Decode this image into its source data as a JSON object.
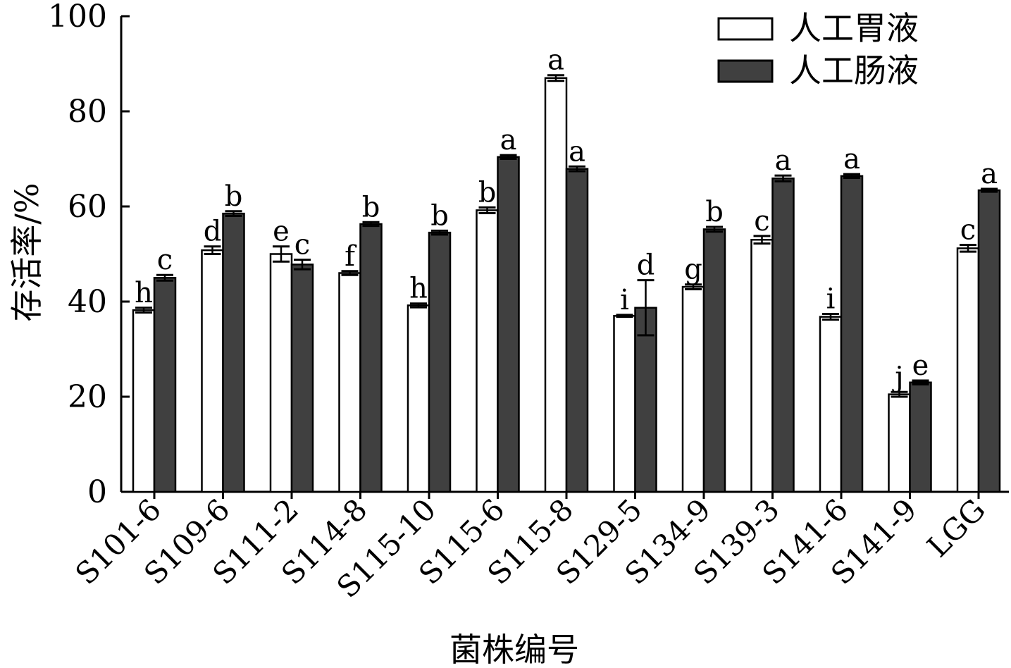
{
  "chart_data": {
    "type": "bar",
    "title": "",
    "xlabel": "菌株编号",
    "ylabel": "存活率/%",
    "ylim": [
      0,
      100
    ],
    "yticks": [
      0,
      20,
      40,
      60,
      80,
      100
    ],
    "legend_position": "top-right",
    "grid": false,
    "categories": [
      "S101-6",
      "S109-6",
      "S111-2",
      "S114-8",
      "S115-10",
      "S115-6",
      "S115-8",
      "S129-5",
      "S134-9",
      "S139-3",
      "S141-6",
      "S141-9",
      "LGG"
    ],
    "series": [
      {
        "name": "人工胃液",
        "color": "#ffffff",
        "values": [
          38.2,
          50.8,
          50.0,
          46.0,
          39.2,
          59.2,
          87.0,
          37.0,
          43.1,
          53.0,
          36.8,
          20.5,
          51.2
        ],
        "errors": [
          0.5,
          0.8,
          1.6,
          0.4,
          0.4,
          0.6,
          0.6,
          0.2,
          0.5,
          0.8,
          0.6,
          0.5,
          0.7
        ],
        "labels": [
          "h",
          "d",
          "e",
          "f",
          "h",
          "b",
          "a",
          "i",
          "g",
          "c",
          "i",
          "j",
          "c"
        ]
      },
      {
        "name": "人工肠液",
        "color": "#404040",
        "values": [
          45.0,
          58.5,
          47.8,
          56.3,
          54.5,
          70.4,
          67.9,
          38.7,
          55.2,
          65.9,
          66.4,
          23.0,
          63.4
        ],
        "errors": [
          0.6,
          0.5,
          1.0,
          0.4,
          0.4,
          0.4,
          0.5,
          5.8,
          0.5,
          0.6,
          0.4,
          0.4,
          0.3
        ],
        "labels": [
          "c",
          "b",
          "c",
          "b",
          "b",
          "a",
          "a",
          "d",
          "b",
          "a",
          "a",
          "e",
          "a"
        ]
      }
    ]
  }
}
